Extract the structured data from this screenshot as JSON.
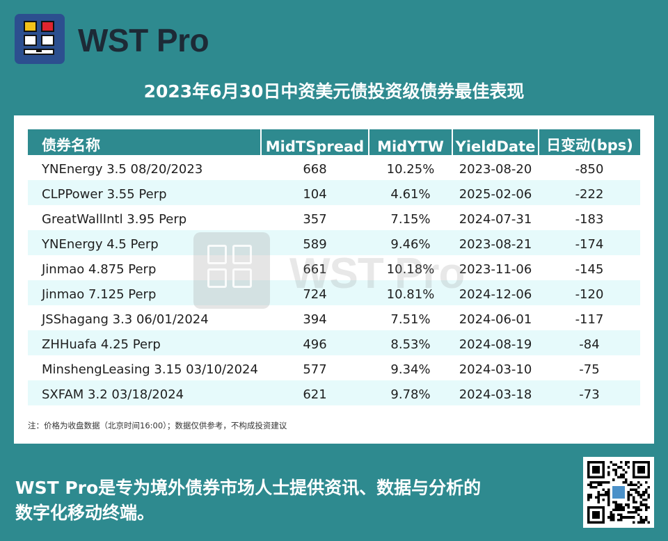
{
  "brand": {
    "name": "WST Pro"
  },
  "title": "2023年6月30日中资美元债投资级债券最佳表现",
  "table": {
    "headers": [
      "债券名称",
      "MidTSpread",
      "MidYTW",
      "YieldDate",
      "日变动(bps)"
    ],
    "rows": [
      [
        "YNEnergy 3.5 08/20/2023",
        "668",
        "10.25%",
        "2023-08-20",
        "-850"
      ],
      [
        "CLPPower 3.55 Perp",
        "104",
        "4.61%",
        "2025-02-06",
        "-222"
      ],
      [
        "GreatWallIntl 3.95 Perp",
        "357",
        "7.15%",
        "2024-07-31",
        "-183"
      ],
      [
        "YNEnergy 4.5 Perp",
        "589",
        "9.46%",
        "2023-08-21",
        "-174"
      ],
      [
        "Jinmao 4.875 Perp",
        "661",
        "10.18%",
        "2023-11-06",
        "-145"
      ],
      [
        "Jinmao 7.125 Perp",
        "724",
        "10.81%",
        "2024-12-06",
        "-120"
      ],
      [
        "JSShagang 3.3 06/01/2024",
        "394",
        "7.51%",
        "2024-06-01",
        "-117"
      ],
      [
        "ZHHuafa 4.25 Perp",
        "496",
        "8.53%",
        "2024-08-19",
        "-84"
      ],
      [
        "MinshengLeasing 3.15 03/10/2024",
        "577",
        "9.34%",
        "2024-03-10",
        "-75"
      ],
      [
        "SXFAM 3.2 03/18/2024",
        "621",
        "9.78%",
        "2024-03-18",
        "-73"
      ]
    ]
  },
  "note": "注：价格为收盘数据（北京时间16:00）；数据仅供参考，不构成投资建议",
  "watermark": "WST Pro",
  "footer": {
    "line1": "WST Pro是专为境外债券市场人士提供资讯、数据与分析的",
    "line2": "数字化移动终端。"
  },
  "icons": {
    "logo": "wst-pro-logo-icon",
    "qr": "qr-code-icon"
  },
  "colors": {
    "background": "#2e8a8f",
    "header_row": "#2e8a8f",
    "alt_row": "#e6fafb",
    "logo_bg": "#2c4f8f"
  }
}
